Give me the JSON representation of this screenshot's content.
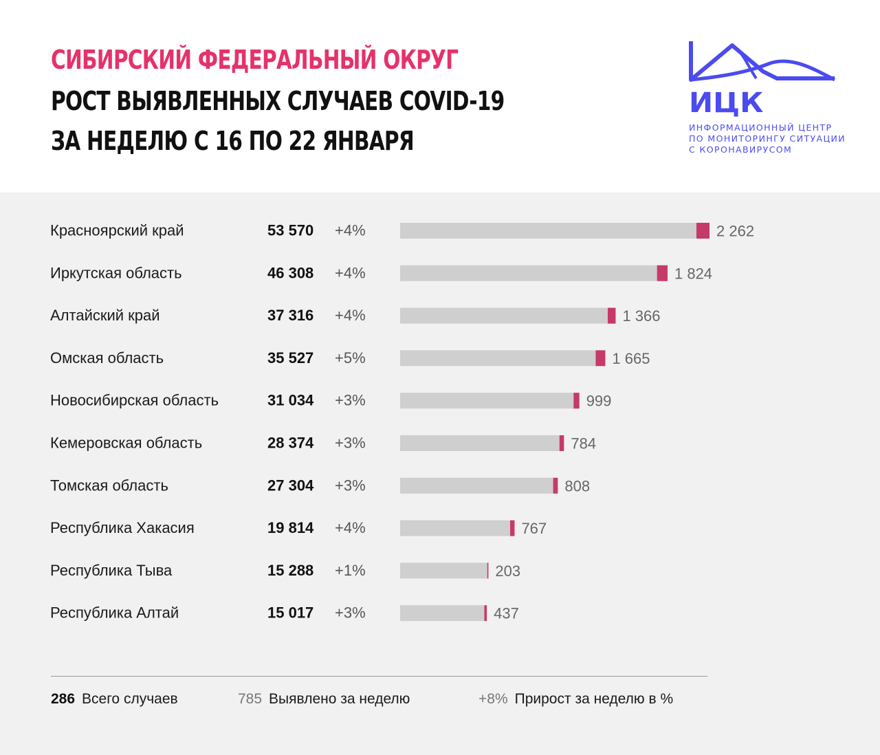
{
  "header": {
    "title_line1": "СИБИРСКИЙ ФЕДЕРАЛЬНЫЙ ОКРУГ",
    "title_line2": "РОСТ ВЫЯВЛЕННЫХ СЛУЧАЕВ COVID-19",
    "title_line3": "ЗА НЕДЕЛЮ С 16 ПО 22 ЯНВАРЯ"
  },
  "logo": {
    "abbr": "ИЦК",
    "line1": "ИНФОРМАЦИОННЫЙ ЦЕНТР",
    "line2": "ПО МОНИТОРИНГУ СИТУАЦИИ",
    "line3": "С КОРОНАВИРУСОМ",
    "color": "#4b4bf0"
  },
  "colors": {
    "title_accent": "#e5326b",
    "bar_total": "#cfcfcf",
    "bar_week": "#c53a6a",
    "background_panel": "#f1f1f1"
  },
  "chart_data": {
    "type": "bar",
    "orientation": "horizontal",
    "categories": [
      "Красноярский край",
      "Иркутская область",
      "Алтайский край",
      "Омская область",
      "Новосибирская область",
      "Кемеровская область",
      "Томская область",
      "Республика Хакасия",
      "Республика Тыва",
      "Республика Алтай"
    ],
    "totals": [
      53570,
      46308,
      37316,
      35527,
      31034,
      28374,
      27304,
      19814,
      15288,
      15017
    ],
    "totals_text": [
      "53 570",
      "46 308",
      "37 316",
      "35 527",
      "31 034",
      "28 374",
      "27 304",
      "19 814",
      "15 288",
      "15 017"
    ],
    "growth_pct": [
      "+4%",
      "+4%",
      "+4%",
      "+5%",
      "+3%",
      "+3%",
      "+3%",
      "+4%",
      "+1%",
      "+3%"
    ],
    "weekly": [
      2262,
      1824,
      1366,
      1665,
      999,
      784,
      808,
      767,
      203,
      437
    ],
    "weekly_text": [
      "2 262",
      "1 824",
      "1 366",
      "1 665",
      "999",
      "784",
      "808",
      "767",
      "203",
      "437"
    ],
    "xlim": [
      0,
      53570
    ]
  },
  "legend": {
    "total_example": "286",
    "total_label": "Всего случаев",
    "week_example": "785",
    "week_label": "Выявлено за неделю",
    "pct_example": "+8%",
    "pct_label": "Прирост за неделю в %"
  }
}
